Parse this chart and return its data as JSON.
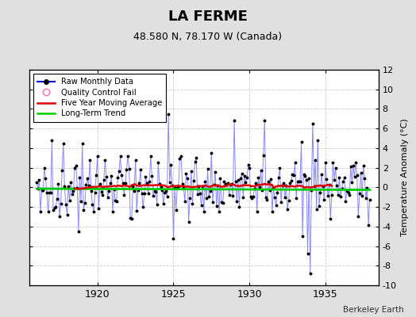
{
  "title": "LA FERME",
  "subtitle": "48.580 N, 78.170 W (Canada)",
  "ylabel": "Temperature Anomaly (°C)",
  "credit": "Berkeley Earth",
  "ylim": [
    -10,
    12
  ],
  "yticks": [
    -10,
    -8,
    -6,
    -4,
    -2,
    0,
    2,
    4,
    6,
    8,
    10,
    12
  ],
  "xlim": [
    1915.5,
    1938.5
  ],
  "xticks": [
    1920,
    1925,
    1930,
    1935
  ],
  "fig_bg_color": "#e0e0e0",
  "plot_bg_color": "#ffffff",
  "grid_color": "#cccccc",
  "raw_line_color": "#8888ff",
  "raw_dot_color": "#000000",
  "moving_avg_color": "#dd0000",
  "trend_color": "#00cc00",
  "qc_color": "#ff69b4",
  "legend_items": [
    {
      "label": "Raw Monthly Data",
      "line_color": "#0000cc",
      "dot_color": "#000000"
    },
    {
      "label": "Quality Control Fail",
      "color": "#ff69b4"
    },
    {
      "label": "Five Year Moving Average",
      "color": "#dd0000"
    },
    {
      "label": "Long-Term Trend",
      "color": "#00cc00"
    }
  ],
  "seed": 42,
  "start_year": 1916,
  "end_year": 1937
}
